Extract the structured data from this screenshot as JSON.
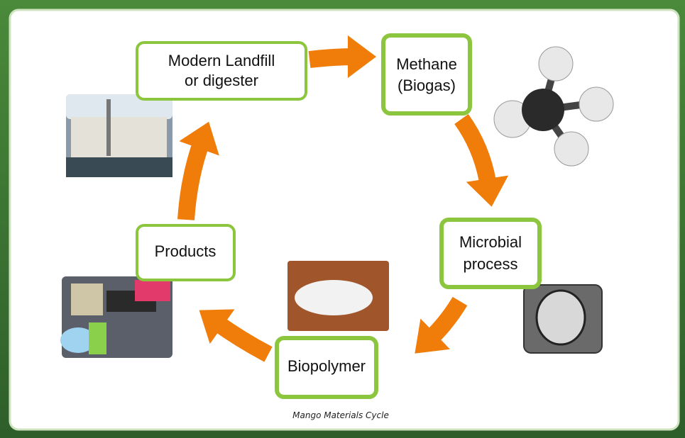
{
  "title": "Mango Materials Cycle",
  "nodes": [
    {
      "lines": [
        "Modern Landfill",
        "or digester"
      ]
    },
    {
      "lines": [
        "Methane",
        "(Biogas)"
      ]
    },
    {
      "lines": [
        "Microbial",
        "process"
      ]
    },
    {
      "lines": [
        "Biopolymer"
      ]
    },
    {
      "lines": [
        "Products"
      ]
    }
  ]
}
